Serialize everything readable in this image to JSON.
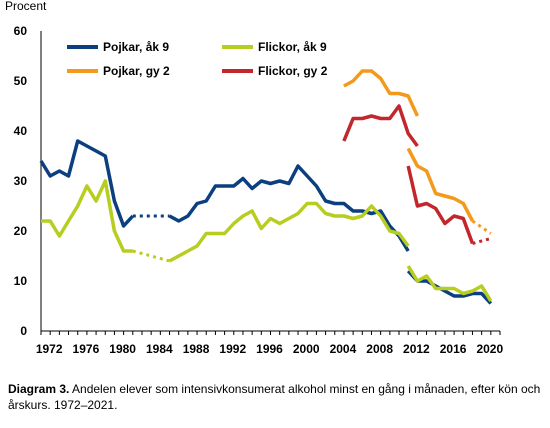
{
  "chart_data": {
    "type": "line",
    "ylabel": "Procent",
    "ylim": [
      0,
      60
    ],
    "yticks": [
      0,
      10,
      20,
      30,
      40,
      50,
      60
    ],
    "xlim": [
      1972,
      2021
    ],
    "xticks": [
      1972,
      1976,
      1980,
      1984,
      1988,
      1992,
      1996,
      2000,
      2004,
      2008,
      2012,
      2016,
      2020
    ],
    "grid": false,
    "legend_position": "top",
    "series": [
      {
        "name": "Pojkar, åk 9",
        "color": "#0b3f7f",
        "segments": [
          {
            "style": "solid",
            "points": [
              [
                1971,
                34
              ],
              [
                1972,
                31
              ],
              [
                1973,
                32
              ],
              [
                1974,
                31
              ],
              [
                1975,
                38
              ],
              [
                1976,
                37
              ],
              [
                1977,
                36
              ],
              [
                1978,
                35
              ],
              [
                1979,
                26
              ],
              [
                1980,
                21
              ],
              [
                1981,
                23
              ]
            ]
          },
          {
            "style": "dotted",
            "points": [
              [
                1981,
                23
              ],
              [
                1985,
                23
              ]
            ]
          },
          {
            "style": "solid",
            "points": [
              [
                1985,
                23
              ],
              [
                1986,
                22
              ],
              [
                1987,
                23
              ],
              [
                1988,
                25.5
              ],
              [
                1989,
                26
              ],
              [
                1990,
                29
              ],
              [
                1991,
                29
              ],
              [
                1992,
                29
              ],
              [
                1993,
                30.5
              ],
              [
                1994,
                28.5
              ],
              [
                1995,
                30
              ],
              [
                1996,
                29.5
              ],
              [
                1997,
                30
              ],
              [
                1998,
                29.5
              ],
              [
                1999,
                33
              ],
              [
                2000,
                31
              ],
              [
                2001,
                29
              ],
              [
                2002,
                26
              ],
              [
                2003,
                25.5
              ],
              [
                2004,
                25.5
              ],
              [
                2005,
                24
              ],
              [
                2006,
                24
              ],
              [
                2007,
                23.5
              ],
              [
                2008,
                24
              ],
              [
                2009,
                21
              ],
              [
                2010,
                19
              ],
              [
                2011,
                16
              ]
            ]
          },
          {
            "style": "solid",
            "points": [
              [
                2011,
                12
              ],
              [
                2012,
                10
              ],
              [
                2013,
                10
              ],
              [
                2014,
                9
              ],
              [
                2015,
                8
              ],
              [
                2016,
                7
              ],
              [
                2017,
                7
              ],
              [
                2018,
                7.5
              ],
              [
                2019,
                7.5
              ],
              [
                2020,
                5.5
              ]
            ]
          }
        ]
      },
      {
        "name": "Flickor, åk 9",
        "color": "#b7cd1f",
        "segments": [
          {
            "style": "solid",
            "points": [
              [
                1971,
                22
              ],
              [
                1972,
                22
              ],
              [
                1973,
                19
              ],
              [
                1974,
                22
              ],
              [
                1975,
                25
              ],
              [
                1976,
                29
              ],
              [
                1977,
                26
              ],
              [
                1978,
                30
              ],
              [
                1979,
                20
              ],
              [
                1980,
                16
              ],
              [
                1981,
                16
              ]
            ]
          },
          {
            "style": "dotted",
            "points": [
              [
                1981,
                16
              ],
              [
                1985,
                14
              ]
            ]
          },
          {
            "style": "solid",
            "points": [
              [
                1985,
                14
              ],
              [
                1986,
                15
              ],
              [
                1987,
                16
              ],
              [
                1988,
                17
              ],
              [
                1989,
                19.5
              ],
              [
                1990,
                19.5
              ],
              [
                1991,
                19.5
              ],
              [
                1992,
                21.5
              ],
              [
                1993,
                23
              ],
              [
                1994,
                24
              ],
              [
                1995,
                20.5
              ],
              [
                1996,
                22.5
              ],
              [
                1997,
                21.5
              ],
              [
                1998,
                22.5
              ],
              [
                1999,
                23.5
              ],
              [
                2000,
                25.5
              ],
              [
                2001,
                25.5
              ],
              [
                2002,
                23.5
              ],
              [
                2003,
                23
              ],
              [
                2004,
                23
              ],
              [
                2005,
                22.5
              ],
              [
                2006,
                23
              ],
              [
                2007,
                25
              ],
              [
                2008,
                23
              ],
              [
                2009,
                20
              ],
              [
                2010,
                19.5
              ],
              [
                2011,
                17
              ]
            ]
          },
          {
            "style": "solid",
            "points": [
              [
                2011,
                13
              ],
              [
                2012,
                10
              ],
              [
                2013,
                11
              ],
              [
                2014,
                8.5
              ],
              [
                2015,
                8.5
              ],
              [
                2016,
                8.5
              ],
              [
                2017,
                7.5
              ],
              [
                2018,
                8
              ],
              [
                2019,
                9
              ],
              [
                2020,
                6
              ]
            ]
          }
        ]
      },
      {
        "name": "Pojkar, gy 2",
        "color": "#f39a1c",
        "segments": [
          {
            "style": "solid",
            "points": [
              [
                2004,
                49
              ],
              [
                2005,
                50
              ],
              [
                2006,
                52
              ],
              [
                2007,
                52
              ],
              [
                2008,
                50.5
              ],
              [
                2009,
                47.5
              ],
              [
                2010,
                47.5
              ],
              [
                2011,
                47
              ],
              [
                2012,
                43
              ]
            ]
          },
          {
            "style": "solid",
            "points": [
              [
                2011,
                36.5
              ],
              [
                2012,
                33
              ],
              [
                2013,
                32
              ],
              [
                2014,
                27.5
              ],
              [
                2015,
                27
              ],
              [
                2016,
                26.5
              ],
              [
                2017,
                25.5
              ],
              [
                2018,
                22
              ]
            ]
          },
          {
            "style": "dotted",
            "points": [
              [
                2018,
                22
              ],
              [
                2020,
                19.5
              ]
            ]
          }
        ]
      },
      {
        "name": "Flickor, gy 2",
        "color": "#c1272d",
        "segments": [
          {
            "style": "solid",
            "points": [
              [
                2004,
                38
              ],
              [
                2005,
                42.5
              ],
              [
                2006,
                42.5
              ],
              [
                2007,
                43
              ],
              [
                2008,
                42.5
              ],
              [
                2009,
                42.5
              ],
              [
                2010,
                45
              ],
              [
                2011,
                39.5
              ],
              [
                2012,
                37
              ]
            ]
          },
          {
            "style": "solid",
            "points": [
              [
                2011,
                33
              ],
              [
                2012,
                25
              ],
              [
                2013,
                25.5
              ],
              [
                2014,
                24.5
              ],
              [
                2015,
                21.5
              ],
              [
                2016,
                23
              ],
              [
                2017,
                22.5
              ],
              [
                2018,
                17.5
              ]
            ]
          },
          {
            "style": "dotted",
            "points": [
              [
                2018,
                17.5
              ],
              [
                2020,
                18.5
              ]
            ]
          }
        ]
      }
    ]
  },
  "caption": {
    "title": "Diagram 3.",
    "text": "Andelen elever som intensivkonsumerat alkohol minst en gång i månaden, efter kön och årskurs. 1972–2021."
  }
}
